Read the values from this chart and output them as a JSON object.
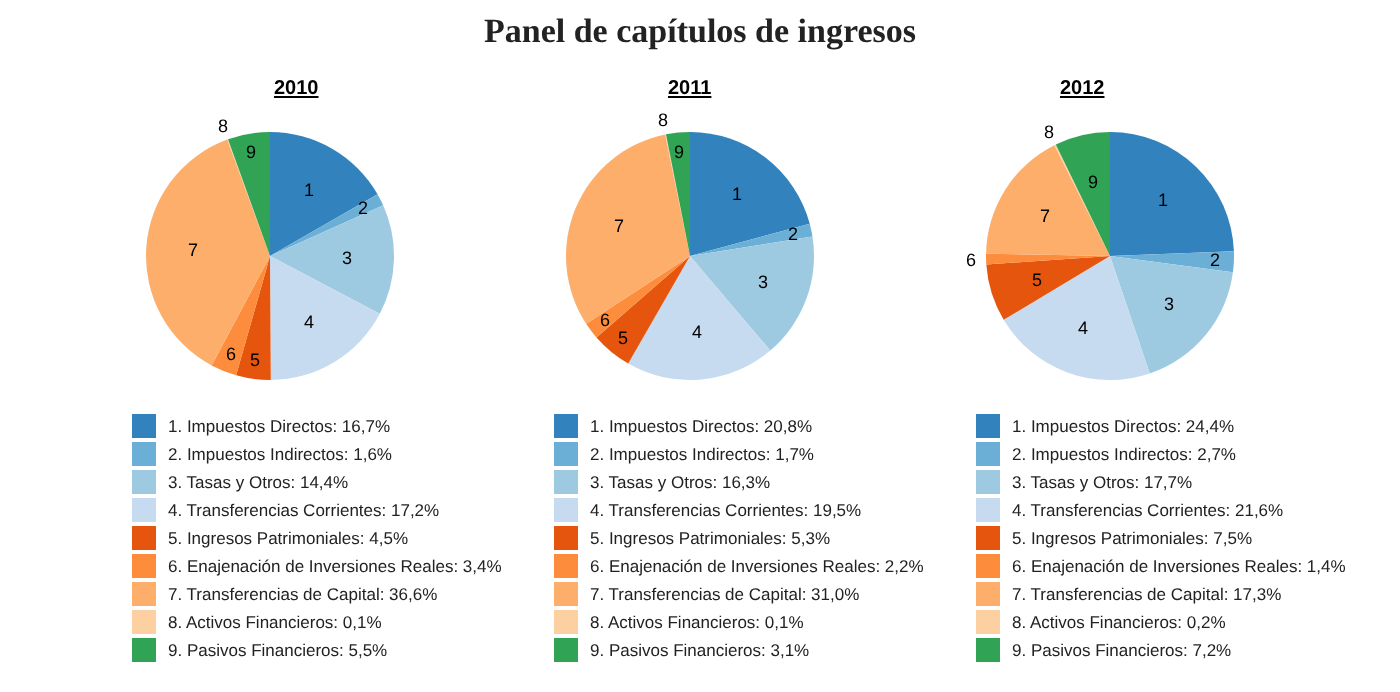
{
  "chart_data": [
    {
      "type": "pie",
      "title": "2010",
      "legend": "bottom",
      "categories": [
        "1. Impuestos Directos: 16,7%",
        "2. Impuestos Indirectos: 1,6%",
        "3. Tasas y Otros: 14,4%",
        "4. Transferencias Corrientes: 17,2%",
        "5. Ingresos Patrimoniales: 4,5%",
        "6. Enajenación de Inversiones Reales: 3,4%",
        "7. Transferencias de Capital: 36,6%",
        "8. Activos Financieros: 0,1%",
        "9. Pasivos Financieros: 5,5%"
      ],
      "values": [
        16.7,
        1.6,
        14.4,
        17.2,
        4.5,
        3.4,
        36.6,
        0.1,
        5.5
      ],
      "colors": [
        "#3182bd",
        "#6baed6",
        "#9ecae1",
        "#c6dbef",
        "#e6550d",
        "#fd8d3c",
        "#fdae6b",
        "#fdd0a2",
        "#31a354"
      ],
      "annotations": [
        "Panel de capítulos de ingresos",
        {
          "text": "1",
          "x": "1. Impuestos Directos: 16,7%"
        },
        {
          "text": "2",
          "x": "2. Impuestos Indirectos: 1,6%"
        },
        {
          "text": "3",
          "x": "3. Tasas y Otros: 14,4%"
        },
        {
          "text": "4",
          "x": "4. Transferencias Corrientes: 17,2%"
        },
        {
          "text": "5",
          "x": "5. Ingresos Patrimoniales: 4,5%"
        },
        {
          "text": "6",
          "x": "6. Enajenación de Inversiones Reales: 3,4%"
        },
        {
          "text": "7",
          "x": "7. Transferencias de Capital: 36,6%"
        },
        {
          "text": "8",
          "x": "8. Activos Financieros: 0,1%"
        },
        {
          "text": "9",
          "x": "9. Pasivos Financieros: 5,5%"
        }
      ]
    },
    {
      "type": "pie",
      "title": "2011",
      "legend": "bottom",
      "categories": [
        "1. Impuestos Directos: 20,8%",
        "2. Impuestos Indirectos: 1,7%",
        "3. Tasas y Otros: 16,3%",
        "4. Transferencias Corrientes: 19,5%",
        "5. Ingresos Patrimoniales: 5,3%",
        "6. Enajenación de Inversiones Reales: 2,2%",
        "7. Transferencias de Capital: 31,0%",
        "8. Activos Financieros: 0,1%",
        "9. Pasivos Financieros: 3,1%"
      ],
      "values": [
        20.8,
        1.7,
        16.3,
        19.5,
        5.3,
        2.2,
        31.0,
        0.1,
        3.1
      ],
      "colors": [
        "#3182bd",
        "#6baed6",
        "#9ecae1",
        "#c6dbef",
        "#e6550d",
        "#fd8d3c",
        "#fdae6b",
        "#fdd0a2",
        "#31a354"
      ],
      "annotations": [
        {
          "text": "1",
          "x": "1. Impuestos Directos: 20,8%"
        },
        {
          "text": "2",
          "x": "2. Impuestos Indirectos: 1,7%"
        },
        {
          "text": "3",
          "x": "3. Tasas y Otros: 16,3%"
        },
        {
          "text": "4",
          "x": "4. Transferencias Corrientes: 19,5%"
        },
        {
          "text": "5",
          "x": "5. Ingresos Patrimoniales: 5,3%"
        },
        {
          "text": "6",
          "x": "6. Enajenación de Inversiones Reales: 2,2%"
        },
        {
          "text": "7",
          "x": "7. Transferencias de Capital: 31,0%"
        },
        {
          "text": "8",
          "x": "8. Activos Financieros: 0,1%"
        },
        {
          "text": "9",
          "x": "9. Pasivos Financieros: 3,1%"
        }
      ]
    },
    {
      "type": "pie",
      "title": "2012",
      "legend": "bottom",
      "categories": [
        "1. Impuestos Directos: 24,4%",
        "2. Impuestos Indirectos: 2,7%",
        "3. Tasas y Otros: 17,7%",
        "4. Transferencias Corrientes: 21,6%",
        "5. Ingresos Patrimoniales: 7,5%",
        "6. Enajenación de Inversiones Reales: 1,4%",
        "7. Transferencias de Capital: 17,3%",
        "8. Activos Financieros: 0,2%",
        "9. Pasivos Financieros: 7,2%"
      ],
      "values": [
        24.4,
        2.7,
        17.7,
        21.6,
        7.5,
        1.4,
        17.3,
        0.2,
        7.2
      ],
      "colors": [
        "#3182bd",
        "#6baed6",
        "#9ecae1",
        "#c6dbef",
        "#e6550d",
        "#fd8d3c",
        "#fdae6b",
        "#fdd0a2",
        "#31a354"
      ],
      "annotations": [
        {
          "text": "1",
          "x": "1. Impuestos Directos: 24,4%"
        },
        {
          "text": "2",
          "x": "2. Impuestos Indirectos: 2,7%"
        },
        {
          "text": "3",
          "x": "3. Tasas y Otros: 17,7%"
        },
        {
          "text": "4",
          "x": "4. Transferencias Corrientes: 21,6%"
        },
        {
          "text": "5",
          "x": "5. Ingresos Patrimoniales: 7,5%"
        },
        {
          "text": "6",
          "x": "6. Enajenación de Inversiones Reales: 1,4%"
        },
        {
          "text": "7",
          "x": "7. Transferencias de Capital: 17,3%"
        },
        {
          "text": "8",
          "x": "8. Activos Financieros: 0,2%"
        },
        {
          "text": "9",
          "x": "9. Pasivos Financieros: 7,2%"
        }
      ]
    }
  ]
}
